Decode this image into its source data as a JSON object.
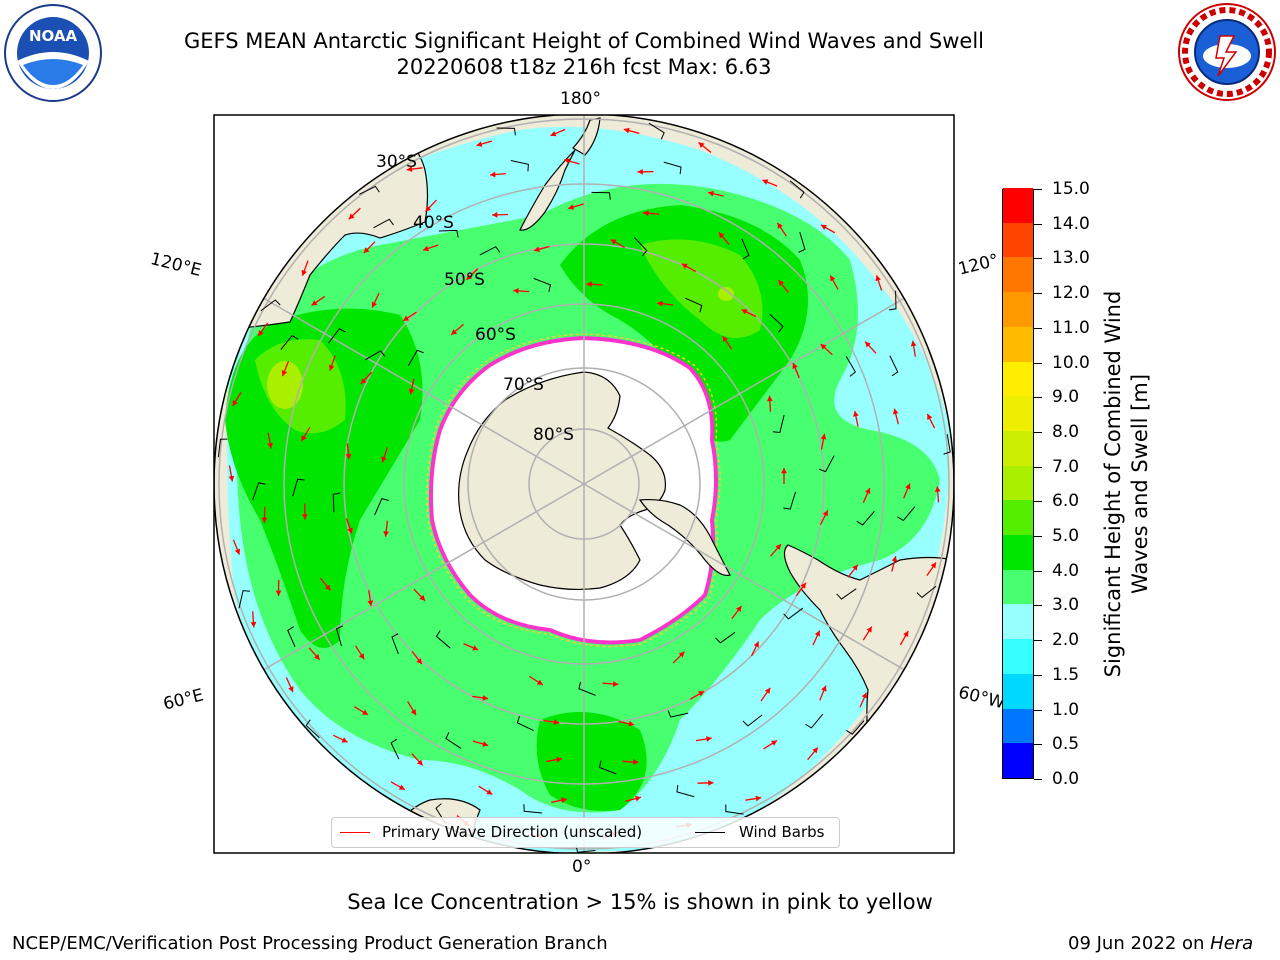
{
  "title_line1": "GEFS MEAN Antarctic Significant Height of Combined Wind Waves and Swell",
  "title_line2": "20220608 t18z 216h fcst   Max: 6.63",
  "lon_labels": {
    "top": "180°",
    "left_upper": "120°E",
    "right_upper": "120°",
    "left_lower": "60°E",
    "right_lower": "60°W",
    "bottom": "0°"
  },
  "lat_labels": [
    "30°S",
    "40°S",
    "50°S",
    "60°S",
    "70°S",
    "80°S"
  ],
  "colorbar": {
    "title": "Significant Height of Combined Wind Waves and Swell [m]",
    "tick_labels": [
      "0.0",
      "0.5",
      "1.0",
      "1.5",
      "2.0",
      "3.0",
      "4.0",
      "5.0",
      "6.0",
      "7.0",
      "8.0",
      "9.0",
      "10.0",
      "11.0",
      "12.0",
      "13.0",
      "14.0",
      "15.0"
    ],
    "colors": [
      "#0000ff",
      "#0077ff",
      "#00d8ff",
      "#35ffff",
      "#98ffff",
      "#48ff70",
      "#00e600",
      "#55ee00",
      "#aaee00",
      "#ccee00",
      "#eeee00",
      "#ffee00",
      "#ffbb00",
      "#ff9900",
      "#ff7700",
      "#ff4400",
      "#ff0000"
    ]
  },
  "legend": {
    "primary_wave": "Primary Wave Direction (unscaled)",
    "wind_barbs": "Wind Barbs",
    "wave_color": "#ff0000",
    "barb_color": "#000000"
  },
  "sea_ice_note": "Sea Ice Concentration > 15% is shown in pink to yellow",
  "footer_left": "NCEP/EMC/Verification Post Processing Product Generation Branch",
  "footer_date": "09 Jun 2022 on",
  "footer_machine": "Hera",
  "map_colors": {
    "land": "#eeebd8",
    "ice": "#ffffff",
    "ice_edge": "#ff33cc",
    "ocean_2_3": "#98ffff",
    "ocean_3_4": "#48ff70",
    "ocean_4_5": "#00e600",
    "ocean_5_6": "#55ee00",
    "ocean_6_7": "#aaee00"
  }
}
